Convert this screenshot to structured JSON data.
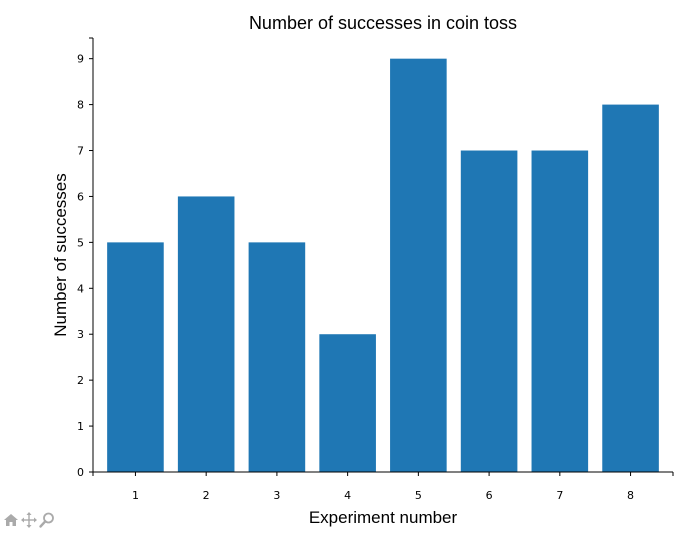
{
  "chart_data": {
    "type": "bar",
    "title": "Number of successes in coin toss",
    "xlabel": "Experiment number",
    "ylabel": "Number of successes",
    "categories": [
      "1",
      "2",
      "3",
      "4",
      "5",
      "6",
      "7",
      "8"
    ],
    "values": [
      5,
      6,
      5,
      3,
      9,
      7,
      7,
      8
    ],
    "ylim": [
      0,
      9.45
    ],
    "yticks": [
      "0",
      "1",
      "2",
      "3",
      "4",
      "5",
      "6",
      "7",
      "8",
      "9"
    ],
    "grid": false,
    "bar_color": "#1f77b4"
  },
  "toolbar": {
    "icons": [
      "home-icon",
      "pan-icon",
      "zoom-icon"
    ],
    "icon_color": "#aaaaaa"
  }
}
